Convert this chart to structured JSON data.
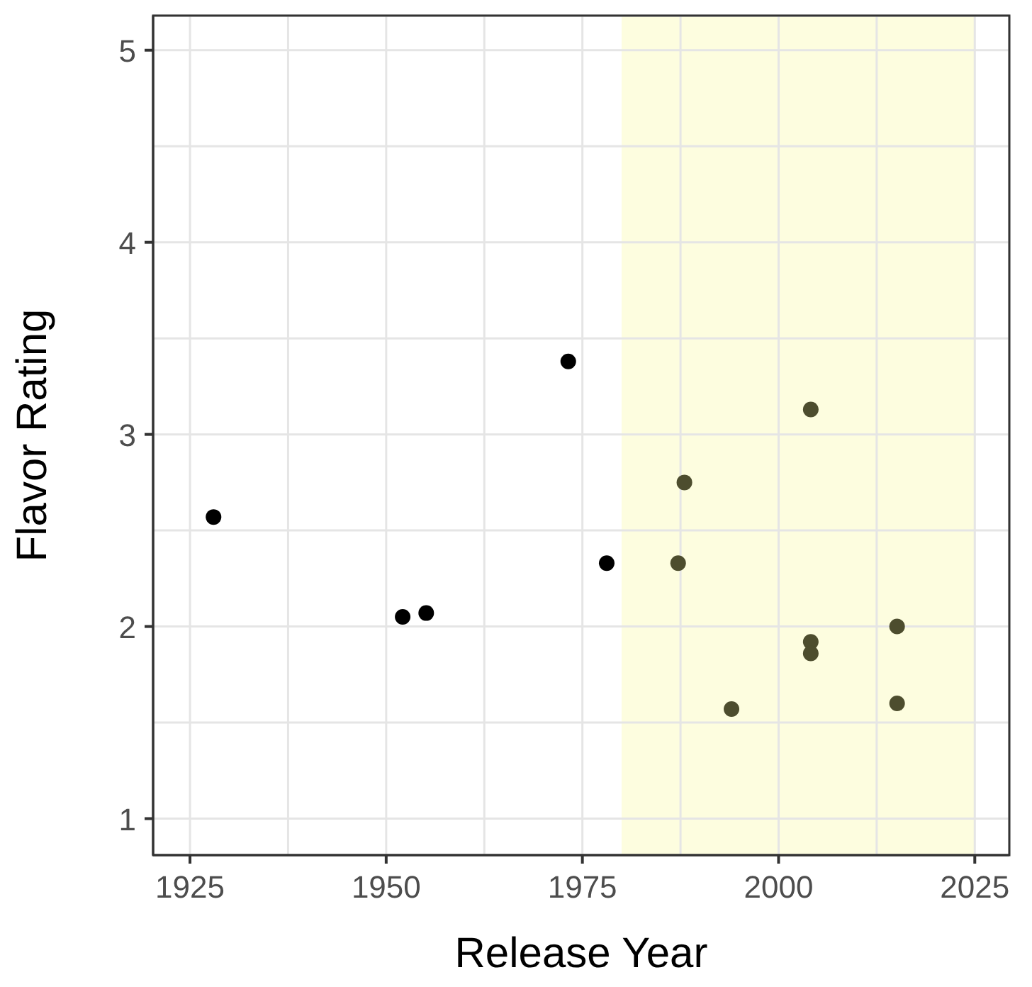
{
  "chart_data": {
    "type": "scatter",
    "xlabel": "Release Year",
    "ylabel": "Flavor Rating",
    "x": [
      1928.0,
      1952.1,
      1955.1,
      1973.2,
      1978.1,
      1987.2,
      1988.0,
      2004.1,
      2004.1,
      2004.1,
      1994.0,
      2015.1,
      2015.1
    ],
    "values": [
      2.57,
      2.05,
      2.07,
      3.38,
      2.33,
      2.33,
      2.75,
      3.13,
      1.92,
      1.86,
      1.57,
      2.0,
      1.6
    ],
    "colors": [
      "#000000",
      "#000000",
      "#000000",
      "#000000",
      "#000000",
      "#4d4d2e",
      "#4d4d2e",
      "#4d4d2e",
      "#4d4d2e",
      "#4d4d2e",
      "#4d4d2e",
      "#4d4d2e",
      "#4d4d2e"
    ],
    "xlim": [
      1920.3,
      2029.4
    ],
    "ylim": [
      0.81,
      5.18
    ],
    "xticks": [
      1925,
      {
        "value": 1937.5,
        "label": null
      },
      1950,
      {
        "value": 1962.5,
        "label": null
      },
      1975,
      {
        "value": 1987.5,
        "label": null
      },
      2000,
      {
        "value": 2012.5,
        "label": null
      },
      2025
    ],
    "yticks": [
      1,
      {
        "value": 1.5,
        "label": null
      },
      2,
      {
        "value": 2.5,
        "label": null
      },
      3,
      {
        "value": 3.5,
        "label": null
      },
      4,
      {
        "value": 4.5,
        "label": null
      },
      5
    ],
    "bands": [
      {
        "axis": "x",
        "from": 1980,
        "to": 2025,
        "color": "#fcfcd7"
      }
    ],
    "grid": true,
    "marker": "circle"
  }
}
